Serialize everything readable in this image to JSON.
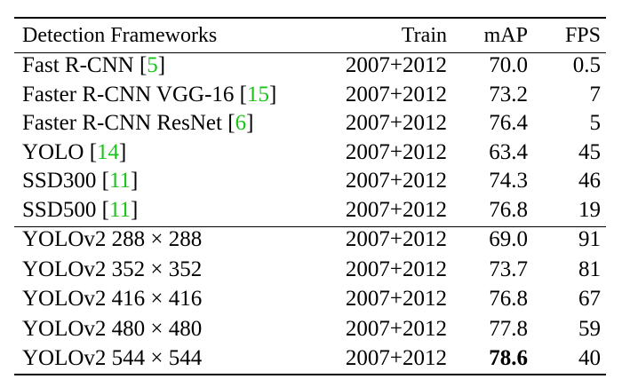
{
  "table": {
    "header": [
      "Detection Frameworks",
      "Train",
      "mAP",
      "FPS"
    ],
    "cite_brackets": [
      "[",
      "]"
    ],
    "groups": [
      [
        {
          "name": "Fast R-CNN",
          "cite": "5",
          "train": "2007+2012",
          "map": "70.0",
          "fps": "0.5"
        },
        {
          "name": "Faster R-CNN VGG-16",
          "cite": "15",
          "train": "2007+2012",
          "map": "73.2",
          "fps": "7"
        },
        {
          "name": "Faster R-CNN ResNet",
          "cite": "6",
          "train": "2007+2012",
          "map": "76.4",
          "fps": "5"
        },
        {
          "name": "YOLO",
          "cite": "14",
          "train": "2007+2012",
          "map": "63.4",
          "fps": "45"
        },
        {
          "name": "SSD300",
          "cite": "11",
          "train": "2007+2012",
          "map": "74.3",
          "fps": "46"
        },
        {
          "name": "SSD500",
          "cite": "11",
          "train": "2007+2012",
          "map": "76.8",
          "fps": "19"
        }
      ],
      [
        {
          "name": "YOLOv2 288 × 288",
          "train": "2007+2012",
          "map": "69.0",
          "fps": "91"
        },
        {
          "name": "YOLOv2 352 × 352",
          "train": "2007+2012",
          "map": "73.7",
          "fps": "81"
        },
        {
          "name": "YOLOv2 416 × 416",
          "train": "2007+2012",
          "map": "76.8",
          "fps": "67"
        },
        {
          "name": "YOLOv2 480 × 480",
          "train": "2007+2012",
          "map": "77.8",
          "fps": "59"
        },
        {
          "name": "YOLOv2 544 × 544",
          "train": "2007+2012",
          "map": "78.6",
          "fps": "40",
          "bold": "map"
        }
      ]
    ]
  }
}
